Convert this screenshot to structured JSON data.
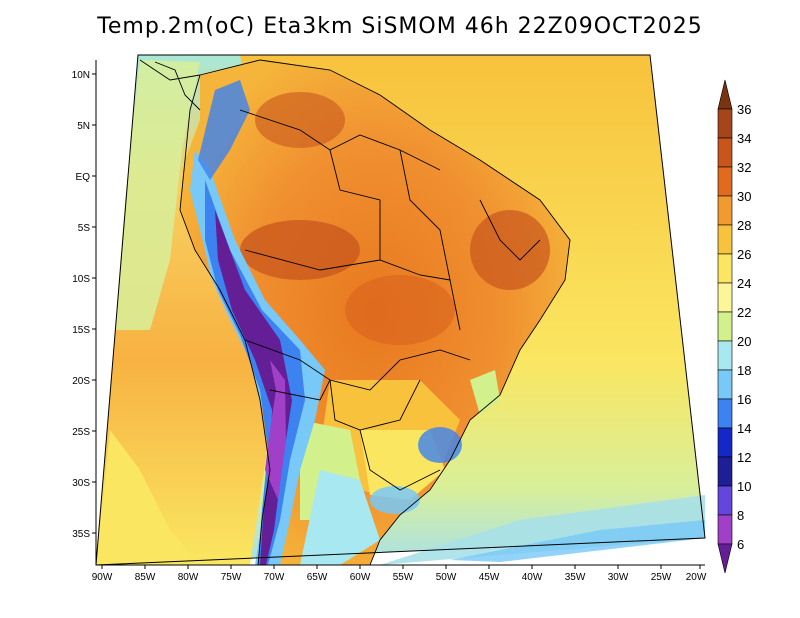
{
  "map": {
    "title": "Temp.2m(oC) Eta3km SiSMOM 46h 22Z09OCT2025",
    "lat_labels": [
      "10N",
      "5N",
      "EQ",
      "5S",
      "10S",
      "15S",
      "20S",
      "25S",
      "30S",
      "35S"
    ],
    "lon_labels": [
      "90W",
      "85W",
      "80W",
      "75W",
      "70W",
      "65W",
      "60W",
      "55W",
      "50W",
      "45W",
      "40W",
      "35W",
      "30W",
      "25W",
      "20W"
    ],
    "colorbar": {
      "levels": [
        "36",
        "34",
        "32",
        "30",
        "28",
        "26",
        "24",
        "22",
        "20",
        "18",
        "16",
        "14",
        "12",
        "10",
        "8",
        "6"
      ],
      "colors": [
        "#7a3410",
        "#a4461a",
        "#c8561c",
        "#e06a1e",
        "#f09a30",
        "#f8c23c",
        "#fae661",
        "#fcf59a",
        "#d2f08c",
        "#a8e8f0",
        "#78c8f8",
        "#3c82f0",
        "#1428c8",
        "#1e1e96",
        "#6446dc",
        "#a040c8",
        "#641e96"
      ]
    }
  }
}
